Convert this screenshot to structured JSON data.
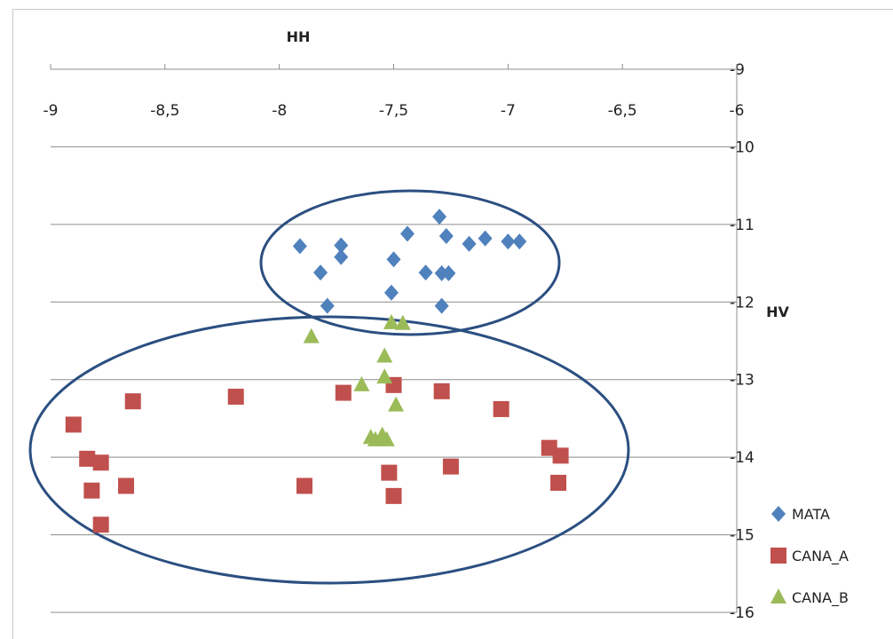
{
  "chart_data": {
    "type": "scatter",
    "title": "",
    "xlabel": "HH",
    "ylabel": "HV",
    "xlim": [
      -9,
      -6
    ],
    "ylim": [
      -16,
      -9
    ],
    "x_ticks": [
      -9,
      -8.5,
      -8,
      -7.5,
      -7,
      -6.5,
      -6
    ],
    "x_tick_labels": [
      "-9",
      "-8,5",
      "-8",
      "-7,5",
      "-7",
      "-6,5",
      "-6"
    ],
    "y_ticks": [
      -9,
      -10,
      -11,
      -12,
      -13,
      -14,
      -15,
      -16
    ],
    "y_tick_labels": [
      "-9",
      "-10",
      "-11",
      "-12",
      "-13",
      "-14",
      "-15",
      "-16"
    ],
    "grid": "horizontal",
    "x_axis_position": "top",
    "y_axis_position": "right",
    "legend_position": "bottom-right",
    "series": [
      {
        "name": "MATA",
        "marker": "diamond",
        "color": "#4f81bd",
        "points": [
          [
            -7.3,
            -10.9
          ],
          [
            -7.44,
            -11.12
          ],
          [
            -7.27,
            -11.15
          ],
          [
            -7.1,
            -11.18
          ],
          [
            -7.17,
            -11.25
          ],
          [
            -7.0,
            -11.22
          ],
          [
            -6.95,
            -11.22
          ],
          [
            -7.91,
            -11.28
          ],
          [
            -7.73,
            -11.27
          ],
          [
            -7.73,
            -11.42
          ],
          [
            -7.5,
            -11.45
          ],
          [
            -7.82,
            -11.62
          ],
          [
            -7.36,
            -11.62
          ],
          [
            -7.29,
            -11.63
          ],
          [
            -7.26,
            -11.63
          ],
          [
            -7.51,
            -11.88
          ],
          [
            -7.29,
            -12.05
          ],
          [
            -7.79,
            -12.05
          ]
        ]
      },
      {
        "name": "CANA_A",
        "marker": "square",
        "color": "#c0504d",
        "points": [
          [
            -8.9,
            -13.58
          ],
          [
            -8.64,
            -13.28
          ],
          [
            -8.19,
            -13.22
          ],
          [
            -7.72,
            -13.17
          ],
          [
            -7.5,
            -13.07
          ],
          [
            -7.29,
            -13.15
          ],
          [
            -7.03,
            -13.38
          ],
          [
            -8.84,
            -14.02
          ],
          [
            -8.78,
            -14.07
          ],
          [
            -8.82,
            -14.43
          ],
          [
            -8.67,
            -14.37
          ],
          [
            -8.78,
            -14.87
          ],
          [
            -7.89,
            -14.37
          ],
          [
            -7.52,
            -14.2
          ],
          [
            -7.5,
            -14.5
          ],
          [
            -7.25,
            -14.12
          ],
          [
            -6.82,
            -13.88
          ],
          [
            -6.77,
            -13.98
          ],
          [
            -6.78,
            -14.33
          ]
        ]
      },
      {
        "name": "CANA_B",
        "marker": "triangle",
        "color": "#9bbb59",
        "points": [
          [
            -7.86,
            -12.45
          ],
          [
            -7.51,
            -12.27
          ],
          [
            -7.46,
            -12.28
          ],
          [
            -7.54,
            -12.7
          ],
          [
            -7.54,
            -12.97
          ],
          [
            -7.64,
            -13.07
          ],
          [
            -7.49,
            -13.33
          ],
          [
            -7.6,
            -13.75
          ],
          [
            -7.58,
            -13.78
          ],
          [
            -7.55,
            -13.72
          ],
          [
            -7.53,
            -13.78
          ]
        ]
      }
    ]
  }
}
